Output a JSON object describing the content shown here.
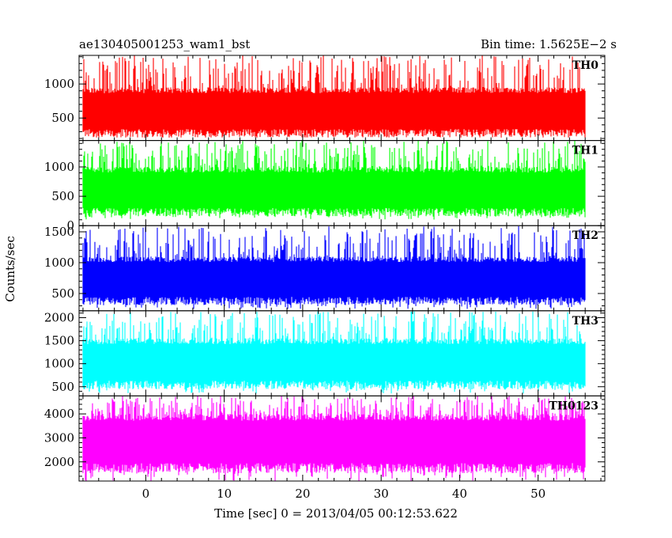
{
  "header": {
    "left_title": "ae130405001253_wam1_bst",
    "right_title": "Bin time: 1.5625E−2 s"
  },
  "chart_data": {
    "type": "line",
    "xlabel": "Time [sec] 0 = 2013/04/05 00:12:53.622",
    "ylabel": "Counts/sec",
    "xlim": [
      -8.5,
      58.5
    ],
    "data_xrange": [
      -8.0,
      56.0
    ],
    "bin_time_s": 0.015625,
    "x_ticks": [
      0,
      10,
      20,
      30,
      40,
      50
    ],
    "x_tick_labels": [
      "0",
      "10",
      "20",
      "30",
      "40",
      "50"
    ],
    "panels": [
      {
        "name": "TH0",
        "color": "#ff0000",
        "ylim": [
          170,
          1420
        ],
        "y_ticks": [
          500,
          1000
        ],
        "y_tick_labels": [
          "500",
          "1000"
        ],
        "typical_low": 250,
        "typical_high": 950,
        "min": 210,
        "max": 1420
      },
      {
        "name": "TH1",
        "color": "#00ff00",
        "ylim": [
          0,
          1450
        ],
        "y_ticks": [
          0,
          500,
          1000
        ],
        "y_tick_labels": [
          "0",
          "500",
          "1000"
        ],
        "typical_low": 200,
        "typical_high": 1000,
        "min": 100,
        "max": 1450
      },
      {
        "name": "TH2",
        "color": "#0000ff",
        "ylim": [
          220,
          1600
        ],
        "y_ticks": [
          500,
          1000,
          1500
        ],
        "y_tick_labels": [
          "500",
          "1000",
          "1500"
        ],
        "typical_low": 350,
        "typical_high": 1100,
        "min": 250,
        "max": 1600
      },
      {
        "name": "TH3",
        "color": "#00ffff",
        "ylim": [
          300,
          2150
        ],
        "y_ticks": [
          500,
          1000,
          1500,
          2000
        ],
        "y_tick_labels": [
          "500",
          "1000",
          "1500",
          "2000"
        ],
        "typical_low": 500,
        "typical_high": 1550,
        "min": 350,
        "max": 2150
      },
      {
        "name": "TH0123",
        "color": "#ff00ff",
        "ylim": [
          1200,
          4750
        ],
        "y_ticks": [
          2000,
          3000,
          4000
        ],
        "y_tick_labels": [
          "2000",
          "3000",
          "4000"
        ],
        "typical_low": 1650,
        "typical_high": 4000,
        "min": 1200,
        "max": 4750
      }
    ]
  }
}
